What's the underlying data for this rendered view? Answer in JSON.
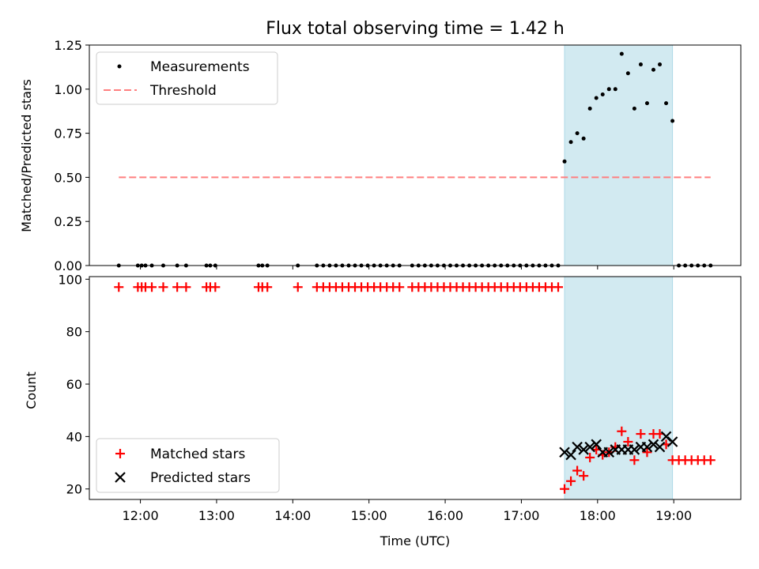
{
  "chart_data": [
    {
      "type": "scatter",
      "title": "Flux total observing time = 1.42 h",
      "xlabel": "",
      "ylabel": "Matched/Predicted stars",
      "xlim_hours": [
        11.33,
        19.88
      ],
      "ylim": [
        0,
        1.25
      ],
      "yticks": [
        0.0,
        0.25,
        0.5,
        0.75,
        1.0,
        1.25
      ],
      "ytick_labels": [
        "0.00",
        "0.25",
        "0.50",
        "0.75",
        "1.00",
        "1.25"
      ],
      "shaded_interval": [
        "17:34",
        "18:59"
      ],
      "legend": {
        "placement": "top-left",
        "entries": [
          "Measurements",
          "Threshold"
        ]
      },
      "series": [
        {
          "name": "Measurements",
          "color": "#000000",
          "x": [
            "11:43",
            "11:58",
            "12:01",
            "12:04",
            "12:09",
            "12:18",
            "12:29",
            "12:36",
            "12:52",
            "12:55",
            "12:59",
            "13:33",
            "13:36",
            "13:40",
            "14:04",
            "14:19",
            "14:24",
            "14:29",
            "14:34",
            "14:39",
            "14:44",
            "14:49",
            "14:54",
            "14:59",
            "15:04",
            "15:09",
            "15:14",
            "15:19",
            "15:24",
            "15:34",
            "15:39",
            "15:44",
            "15:49",
            "15:54",
            "15:59",
            "16:04",
            "16:09",
            "16:14",
            "16:19",
            "16:24",
            "16:29",
            "16:34",
            "16:39",
            "16:44",
            "16:49",
            "16:54",
            "16:59",
            "17:04",
            "17:09",
            "17:14",
            "17:19",
            "17:24",
            "17:29",
            "17:34",
            "17:39",
            "17:44",
            "17:49",
            "17:54",
            "17:59",
            "18:04",
            "18:09",
            "18:14",
            "18:19",
            "18:24",
            "18:29",
            "18:34",
            "18:39",
            "18:44",
            "18:49",
            "18:54",
            "18:59",
            "19:04",
            "19:09",
            "19:14",
            "19:19",
            "19:24",
            "19:29"
          ],
          "y": [
            0,
            0,
            0,
            0,
            0,
            0,
            0,
            0,
            0,
            0,
            0,
            0,
            0,
            0,
            0,
            0,
            0,
            0,
            0,
            0,
            0,
            0,
            0,
            0,
            0,
            0,
            0,
            0,
            0,
            0,
            0,
            0,
            0,
            0,
            0,
            0,
            0,
            0,
            0,
            0,
            0,
            0,
            0,
            0,
            0,
            0,
            0,
            0,
            0,
            0,
            0,
            0,
            0,
            0.59,
            0.7,
            0.75,
            0.72,
            0.89,
            0.95,
            0.97,
            1.0,
            1.0,
            1.2,
            1.09,
            0.89,
            1.14,
            0.92,
            1.11,
            1.14,
            0.92,
            0.82,
            0,
            0,
            0,
            0,
            0,
            0
          ]
        },
        {
          "name": "Threshold",
          "color": "#ff7f7f",
          "style": "dashed",
          "x": [
            "11:43",
            "19:29"
          ],
          "y": [
            0.5,
            0.5
          ]
        }
      ]
    },
    {
      "type": "scatter",
      "title": "",
      "xlabel": "Time (UTC)",
      "ylabel": "Count",
      "xlim_hours": [
        11.33,
        19.88
      ],
      "ylim": [
        16,
        101
      ],
      "xticks": [
        "12:00",
        "13:00",
        "14:00",
        "15:00",
        "16:00",
        "17:00",
        "18:00",
        "19:00"
      ],
      "yticks": [
        20,
        40,
        60,
        80,
        100
      ],
      "ytick_labels": [
        "20",
        "40",
        "60",
        "80",
        "100"
      ],
      "shaded_interval": [
        "17:34",
        "18:59"
      ],
      "legend": {
        "placement": "bottom-left",
        "entries": [
          "Matched stars",
          "Predicted stars"
        ]
      },
      "series": [
        {
          "name": "Matched stars",
          "color": "#ff0000",
          "marker": "plus",
          "x": [
            "11:43",
            "11:58",
            "12:01",
            "12:04",
            "12:09",
            "12:18",
            "12:29",
            "12:36",
            "12:52",
            "12:55",
            "12:59",
            "13:33",
            "13:36",
            "13:40",
            "14:04",
            "14:19",
            "14:24",
            "14:29",
            "14:34",
            "14:39",
            "14:44",
            "14:49",
            "14:54",
            "14:59",
            "15:04",
            "15:09",
            "15:14",
            "15:19",
            "15:24",
            "15:34",
            "15:39",
            "15:44",
            "15:49",
            "15:54",
            "15:59",
            "16:04",
            "16:09",
            "16:14",
            "16:19",
            "16:24",
            "16:29",
            "16:34",
            "16:39",
            "16:44",
            "16:49",
            "16:54",
            "16:59",
            "17:04",
            "17:09",
            "17:14",
            "17:19",
            "17:24",
            "17:29",
            "17:34",
            "17:39",
            "17:44",
            "17:49",
            "17:54",
            "17:59",
            "18:04",
            "18:09",
            "18:14",
            "18:19",
            "18:24",
            "18:29",
            "18:34",
            "18:39",
            "18:44",
            "18:49",
            "18:54",
            "18:59",
            "19:04",
            "19:09",
            "19:14",
            "19:19",
            "19:24",
            "19:29"
          ],
          "y": [
            97,
            97,
            97,
            97,
            97,
            97,
            97,
            97,
            97,
            97,
            97,
            97,
            97,
            97,
            97,
            97,
            97,
            97,
            97,
            97,
            97,
            97,
            97,
            97,
            97,
            97,
            97,
            97,
            97,
            97,
            97,
            97,
            97,
            97,
            97,
            97,
            97,
            97,
            97,
            97,
            97,
            97,
            97,
            97,
            97,
            97,
            97,
            97,
            97,
            97,
            97,
            97,
            97,
            20,
            23,
            27,
            25,
            32,
            35,
            33,
            34,
            36,
            42,
            38,
            31,
            41,
            34,
            41,
            41,
            37,
            31,
            31,
            31,
            31,
            31,
            31,
            31
          ]
        },
        {
          "name": "Predicted stars",
          "color": "#000000",
          "marker": "x",
          "x": [
            "17:34",
            "17:39",
            "17:44",
            "17:49",
            "17:54",
            "17:59",
            "18:04",
            "18:09",
            "18:14",
            "18:19",
            "18:24",
            "18:29",
            "18:34",
            "18:39",
            "18:44",
            "18:49",
            "18:54",
            "18:59"
          ],
          "y": [
            34,
            33,
            36,
            35,
            36,
            37,
            34,
            34,
            35,
            35,
            35,
            35,
            36,
            36,
            37,
            36,
            40,
            38
          ]
        }
      ]
    }
  ]
}
